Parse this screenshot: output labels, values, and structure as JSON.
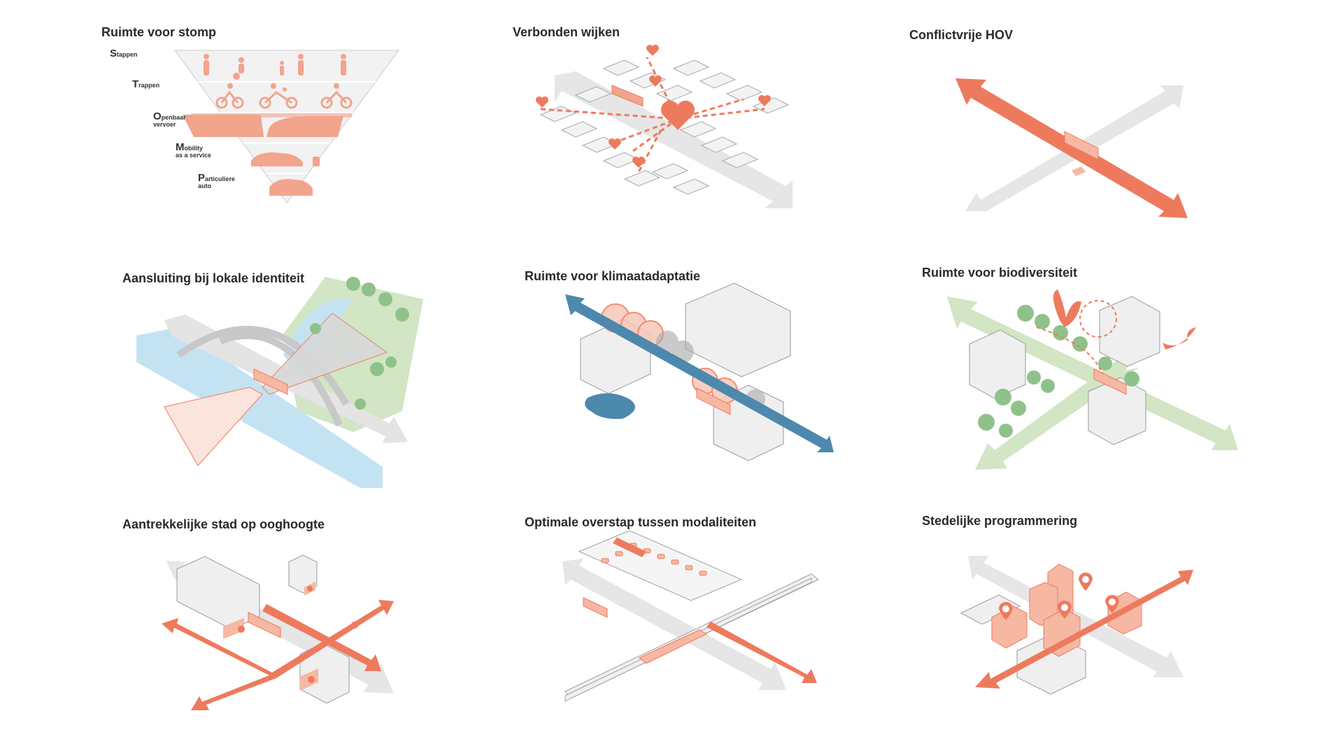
{
  "panels": [
    {
      "title": "Ruimte voor stomp",
      "pyramid": [
        {
          "initial": "S",
          "rest": "tappen",
          "line2": ""
        },
        {
          "initial": "T",
          "rest": "rappen",
          "line2": ""
        },
        {
          "initial": "O",
          "rest": "penbaar",
          "line2": "vervoer"
        },
        {
          "initial": "M",
          "rest": "obility",
          "line2": "as a service"
        },
        {
          "initial": "P",
          "rest": "articuliere",
          "line2": "auto"
        }
      ]
    },
    {
      "title": "Verbonden wijken"
    },
    {
      "title": "Conflictvrije HOV"
    },
    {
      "title": "Aansluiting bij lokale identiteit"
    },
    {
      "title": "Ruimte voor klimaatadaptatie"
    },
    {
      "title": "Ruimte voor biodiversiteit"
    },
    {
      "title": "Aantrekkelijke stad op ooghoogte"
    },
    {
      "title": "Optimale overstap tussen modaliteiten"
    },
    {
      "title": "Stedelijke programmering"
    }
  ],
  "colors": {
    "accent": "#ee7a5e",
    "accent_light": "#f6b8a3",
    "grey_arrow": "#e4e4e4",
    "building": "#ececec",
    "building_stroke": "#9a9a9a",
    "water_blue": "#bfe0f0",
    "water_dark": "#4d88ad",
    "green": "#cfe2c0",
    "tree": "#8fc28a"
  },
  "icons": [
    "heart-icon",
    "tree-icon",
    "butterfly-icon",
    "bird-icon",
    "location-pin-icon",
    "pedestrian-icon",
    "bicycle-icon",
    "tram-icon",
    "car-icon",
    "eye-icon"
  ]
}
